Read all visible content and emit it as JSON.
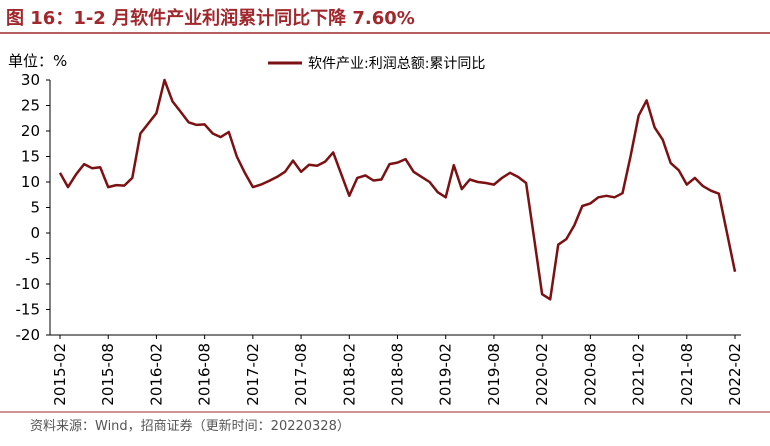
{
  "chart_data": {
    "type": "line",
    "title": "图 16：1-2 月软件产业利润累计同比下降 7.60%",
    "y_unit": "单位：%",
    "source": "资料来源：Wind，招商证券（更新时间：20220328）",
    "categories": [
      "2015-02",
      null,
      null,
      null,
      null,
      null,
      "2015-08",
      null,
      null,
      null,
      null,
      null,
      "2016-02",
      null,
      null,
      null,
      null,
      null,
      "2016-08",
      null,
      null,
      null,
      null,
      null,
      "2017-02",
      null,
      null,
      null,
      null,
      null,
      "2017-08",
      null,
      null,
      null,
      null,
      null,
      "2018-02",
      null,
      null,
      null,
      null,
      null,
      "2018-08",
      null,
      null,
      null,
      null,
      null,
      "2019-02",
      null,
      null,
      null,
      null,
      null,
      "2019-08",
      null,
      null,
      null,
      null,
      null,
      "2020-02",
      null,
      null,
      null,
      null,
      null,
      "2020-08",
      null,
      null,
      null,
      null,
      null,
      "2021-02",
      null,
      null,
      null,
      null,
      null,
      "2021-08",
      null,
      null,
      null,
      null,
      null,
      "2022-02"
    ],
    "series": [
      {
        "name": "软件产业:利润总额:累计同比",
        "color": "#7b1113",
        "values": [
          11.8,
          9,
          11.5,
          13.5,
          12.7,
          12.9,
          9,
          9.4,
          9.3,
          10.8,
          19.5,
          21.5,
          23.5,
          30,
          25.8,
          23.8,
          21.7,
          21.2,
          21.3,
          19.5,
          18.8,
          19.8,
          15,
          11.8,
          9,
          9.5,
          10.2,
          11,
          12,
          14.2,
          12,
          13.4,
          13.2,
          14,
          15.8,
          11.5,
          7.3,
          10.8,
          11.3,
          10.3,
          10.5,
          13.5,
          13.8,
          14.5,
          12,
          11,
          10,
          8,
          7,
          13.3,
          8.6,
          10.5,
          10,
          9.8,
          9.5,
          10.8,
          11.8,
          11,
          9.8,
          -1,
          -12,
          -13,
          -2.3,
          -1.2,
          1.5,
          5.3,
          5.8,
          7,
          7.3,
          7,
          7.8,
          15,
          23,
          26,
          20.7,
          18.3,
          13.7,
          12.3,
          9.5,
          10.8,
          9.2,
          8.3,
          7.7,
          0,
          -7.6
        ]
      }
    ],
    "ylim": [
      -20,
      30
    ],
    "yticks": [
      -20,
      -15,
      -10,
      -5,
      0,
      5,
      10,
      15,
      20,
      25,
      30
    ],
    "grid": false,
    "legend": "top"
  }
}
